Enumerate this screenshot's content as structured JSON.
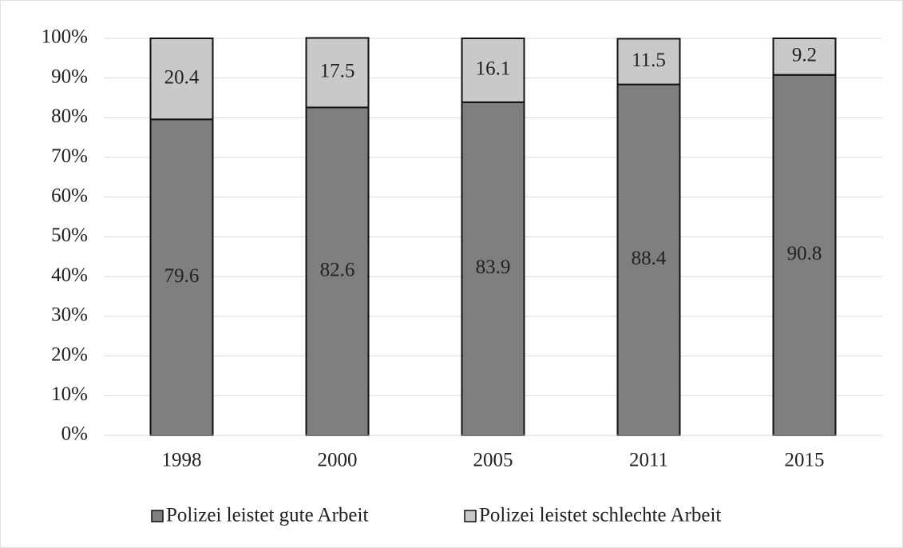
{
  "chart_data": {
    "type": "stacked_bar",
    "categories": [
      "1998",
      "2000",
      "2005",
      "2011",
      "2015"
    ],
    "series": [
      {
        "name": "Polizei leistet gute Arbeit",
        "color": "#7f7f7f",
        "values": [
          79.6,
          82.6,
          83.9,
          88.4,
          90.8
        ]
      },
      {
        "name": "Polizei leistet schlechte Arbeit",
        "color": "#c9c9c9",
        "values": [
          20.4,
          17.5,
          16.1,
          11.5,
          9.2
        ]
      }
    ],
    "ylim": [
      0,
      100
    ],
    "yticks": [
      {
        "value": 0,
        "label": "0%"
      },
      {
        "value": 10,
        "label": "10%"
      },
      {
        "value": 20,
        "label": "20%"
      },
      {
        "value": 30,
        "label": "30%"
      },
      {
        "value": 40,
        "label": "40%"
      },
      {
        "value": 50,
        "label": "50%"
      },
      {
        "value": 60,
        "label": "60%"
      },
      {
        "value": 70,
        "label": "70%"
      },
      {
        "value": 80,
        "label": "80%"
      },
      {
        "value": 90,
        "label": "90%"
      },
      {
        "value": 100,
        "label": "100%"
      }
    ],
    "grid": true,
    "legend": "bottom"
  }
}
